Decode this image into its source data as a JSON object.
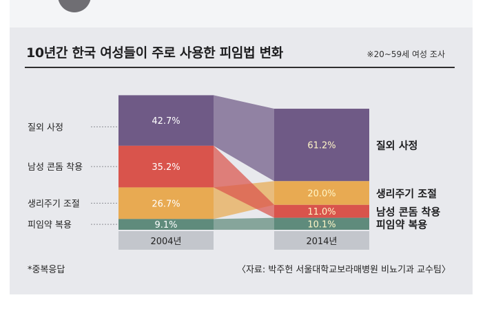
{
  "header": {
    "title": "10년간 한국 여성들이 주로 사용한 피임법 변화",
    "note": "※20~59세 여성 조사"
  },
  "footer": {
    "footnote": "*중복응답",
    "source": "〈자료: 박주헌 서울대학교보라매병원 비뇨기과 교수팀〉"
  },
  "chart_data": {
    "type": "bar",
    "title": "10년간 한국 여성들이 주로 사용한 피임법 변화",
    "categories": [
      "2004년",
      "2014년"
    ],
    "series": [
      {
        "name": "질외 사정",
        "color": "#6f5a86",
        "values": [
          42.7,
          61.2
        ],
        "labels": [
          "42.7%",
          "61.2%"
        ]
      },
      {
        "name": "남성 콘돔 착용",
        "color": "#d9544c",
        "values": [
          35.2,
          11.0
        ],
        "labels": [
          "35.2%",
          "11.0%"
        ]
      },
      {
        "name": "생리주기 조절",
        "color": "#e8aa52",
        "values": [
          26.7,
          20.0
        ],
        "labels": [
          "26.7%",
          "20.0%"
        ]
      },
      {
        "name": "피임약 복용",
        "color": "#5f8b7c",
        "values": [
          9.1,
          10.1
        ],
        "labels": [
          "9.1%",
          "10.1%"
        ]
      }
    ],
    "left_order": [
      "질외 사정",
      "남성 콘돔 착용",
      "생리주기 조절",
      "피임약 복용"
    ],
    "right_order": [
      "질외 사정",
      "생리주기 조절",
      "남성 콘돔 착용",
      "피임약 복용"
    ],
    "stacked": true,
    "xlabel": "",
    "ylabel": "",
    "footnote": "*중복응답",
    "source": "〈자료: 박주헌 서울대학교보라매병원 비뇨기과 교수팀〉"
  }
}
